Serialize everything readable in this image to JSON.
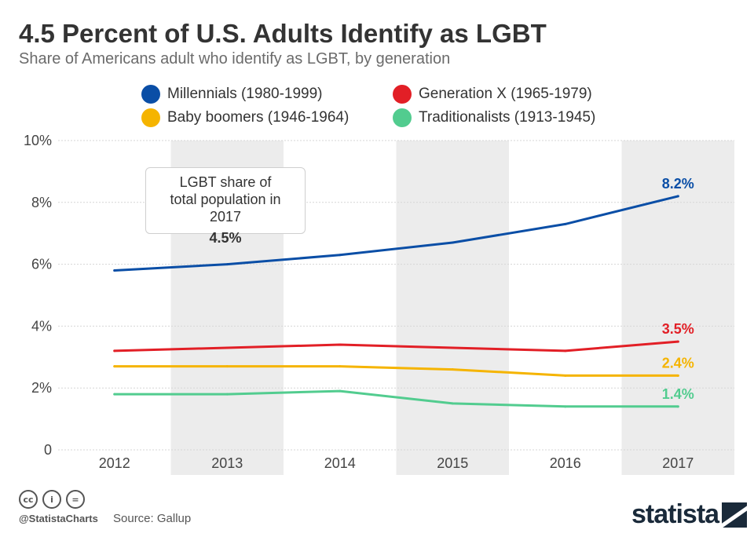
{
  "header": {
    "title": "4.5 Percent of U.S. Adults Identify as LGBT",
    "subtitle": "Share of Americans adult who identify as LGBT, by generation"
  },
  "legend": [
    {
      "label": "Millennials (1980-1999)",
      "color": "#0a4ea6"
    },
    {
      "label": "Generation X (1965-1979)",
      "color": "#e21f26"
    },
    {
      "label": "Baby boomers (1946-1964)",
      "color": "#f5b400"
    },
    {
      "label": "Traditionalists (1913-1945)",
      "color": "#52cc8f"
    }
  ],
  "annotation": {
    "text": "LGBT share of total population in 2017",
    "value": "4.5%"
  },
  "chart_data": {
    "type": "line",
    "title": "4.5 Percent of U.S. Adults Identify as LGBT",
    "subtitle": "Share of Americans adult who identify as LGBT, by generation",
    "xlabel": "",
    "ylabel": "",
    "categories": [
      "2012",
      "2013",
      "2014",
      "2015",
      "2016",
      "2017"
    ],
    "ylim": [
      0,
      10
    ],
    "yticks": [
      0,
      2,
      4,
      6,
      8,
      10
    ],
    "ytick_labels": [
      "0",
      "2%",
      "4%",
      "6%",
      "8%",
      "10%"
    ],
    "grid": true,
    "legend_position": "top",
    "series": [
      {
        "name": "Millennials (1980-1999)",
        "color": "#0a4ea6",
        "values": [
          5.8,
          6.0,
          6.3,
          6.7,
          7.3,
          8.2
        ],
        "end_label": "8.2%"
      },
      {
        "name": "Generation X (1965-1979)",
        "color": "#e21f26",
        "values": [
          3.2,
          3.3,
          3.4,
          3.3,
          3.2,
          3.5
        ],
        "end_label": "3.5%"
      },
      {
        "name": "Baby boomers (1946-1964)",
        "color": "#f5b400",
        "values": [
          2.7,
          2.7,
          2.7,
          2.6,
          2.4,
          2.4
        ],
        "end_label": "2.4%"
      },
      {
        "name": "Traditionalists (1913-1945)",
        "color": "#52cc8f",
        "values": [
          1.8,
          1.8,
          1.9,
          1.5,
          1.4,
          1.4
        ],
        "end_label": "1.4%"
      }
    ]
  },
  "footer": {
    "cc_icons": [
      "cc-icon",
      "by-icon",
      "nd-icon"
    ],
    "cc_glyphs": [
      "cc",
      "i",
      "="
    ],
    "handle": "@StatistaCharts",
    "source": "Source: Gallup",
    "brand": "statista"
  }
}
